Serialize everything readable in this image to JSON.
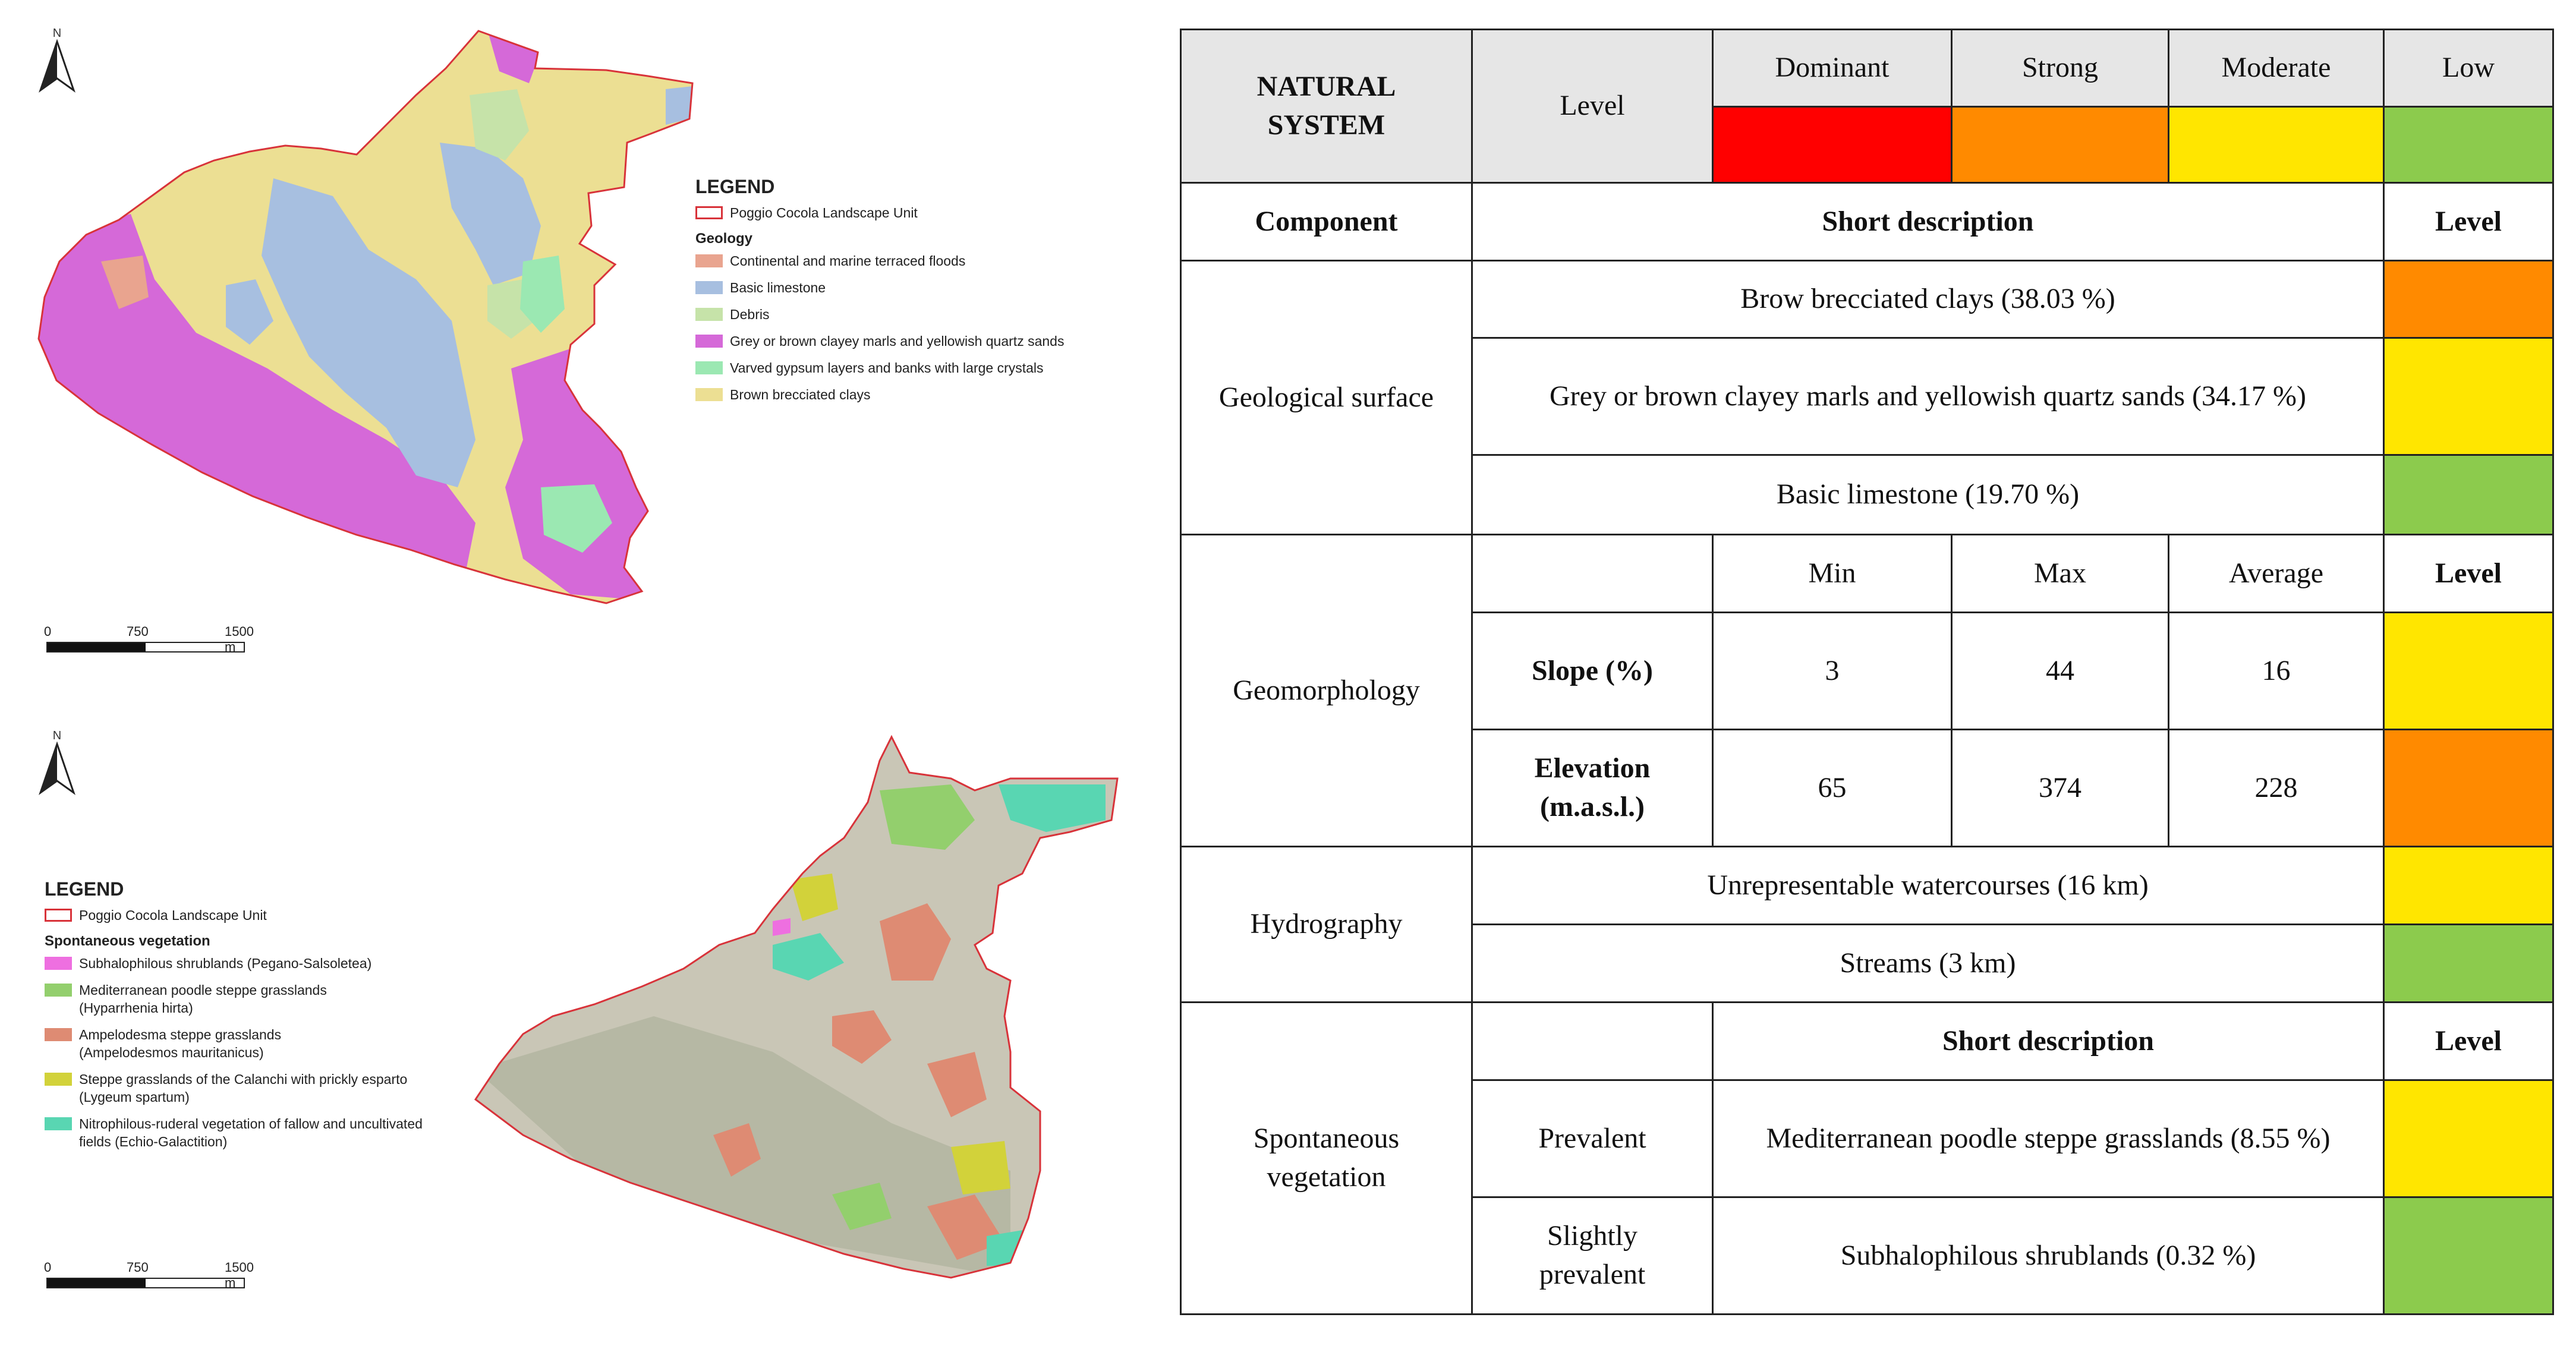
{
  "geology_map": {
    "north_label": "N",
    "legend_title": "LEGEND",
    "unit_label": "Poggio Cocola Landscape Unit",
    "section_title": "Geology",
    "items": [
      {
        "label": "Continental and marine terraced floods",
        "color": "#e9a48f"
      },
      {
        "label": "Basic limestone",
        "color": "#a7bfe0"
      },
      {
        "label": "Debris",
        "color": "#c6e3a9"
      },
      {
        "label": "Grey or brown clayey marls and yellowish quartz sands",
        "color": "#d569d8"
      },
      {
        "label": "Varved gypsum layers and banks with large crystals",
        "color": "#9be8b2"
      },
      {
        "label": "Brown brecciated clays",
        "color": "#ecdf93"
      }
    ],
    "scale": {
      "zero": "0",
      "mid": "750",
      "end": "1500 m"
    }
  },
  "vegetation_map": {
    "north_label": "N",
    "legend_title": "LEGEND",
    "unit_label": "Poggio Cocola Landscape Unit",
    "section_title": "Spontaneous vegetation",
    "items": [
      {
        "label": "Subhalophilous shrublands (Pegano-Salsoletea)",
        "color": "#ee6fe0"
      },
      {
        "label": "Mediterranean poodle steppe grasslands\n(Hyparrhenia hirta)",
        "color": "#93cf6d"
      },
      {
        "label": "Ampelodesma steppe grasslands\n(Ampelodesmos mauritanicus)",
        "color": "#de8b73"
      },
      {
        "label": "Steppe grasslands of the Calanchi with prickly esparto\n(Lygeum spartum)",
        "color": "#d2d23a"
      },
      {
        "label": "Nitrophilous-ruderal vegetation of fallow and uncultivated\nfields (Echio-Galactition)",
        "color": "#59d6b2"
      }
    ],
    "scale": {
      "zero": "0",
      "mid": "750",
      "end": "1500 m"
    }
  },
  "table": {
    "header": {
      "system_line1": "NATURAL",
      "system_line2": "SYSTEM",
      "level": "Level",
      "levels": [
        {
          "label": "Dominant",
          "color": "#ff0000"
        },
        {
          "label": "Strong",
          "color": "#ff8a00"
        },
        {
          "label": "Moderate",
          "color": "#ffe600"
        },
        {
          "label": "Low",
          "color": "#8ccb4d"
        }
      ]
    },
    "column_headers": {
      "component": "Component",
      "short_description": "Short description",
      "level": "Level"
    },
    "geological": {
      "name": "Geological surface",
      "rows": [
        {
          "text": "Brow brecciated clays (38.03 %)",
          "color": "#ff8a00"
        },
        {
          "text": "Grey or brown clayey marls and yellowish quartz sands (34.17 %)",
          "color": "#ffe600"
        },
        {
          "text": "Basic limestone (19.70 %)",
          "color": "#8ccb4d"
        }
      ]
    },
    "geomorphology": {
      "name": "Geomorphology",
      "cols": {
        "min": "Min",
        "max": "Max",
        "avg": "Average",
        "level": "Level"
      },
      "slope": {
        "label": "Slope (%)",
        "min": "3",
        "max": "44",
        "avg": "16",
        "color": "#ffe600"
      },
      "elevation": {
        "label1": "Elevation",
        "label2": "(m.a.s.l.)",
        "min": "65",
        "max": "374",
        "avg": "228",
        "color": "#ff8a00"
      }
    },
    "hydrography": {
      "name": "Hydrography",
      "rows": [
        {
          "text": "Unrepresentable watercourses (16 km)",
          "color": "#ffe600"
        },
        {
          "text": "Streams (3 km)",
          "color": "#8ccb4d"
        }
      ]
    },
    "vegetation": {
      "name1": "Spontaneous",
      "name2": "vegetation",
      "short_description": "Short description",
      "level": "Level",
      "prevalent": {
        "label": "Prevalent",
        "text": "Mediterranean poodle steppe grasslands (8.55 %)",
        "color": "#ffe600"
      },
      "slightly": {
        "label1": "Slightly",
        "label2": "prevalent",
        "text": "Subhalophilous shrublands (0.32 %)",
        "color": "#8ccb4d"
      }
    }
  }
}
